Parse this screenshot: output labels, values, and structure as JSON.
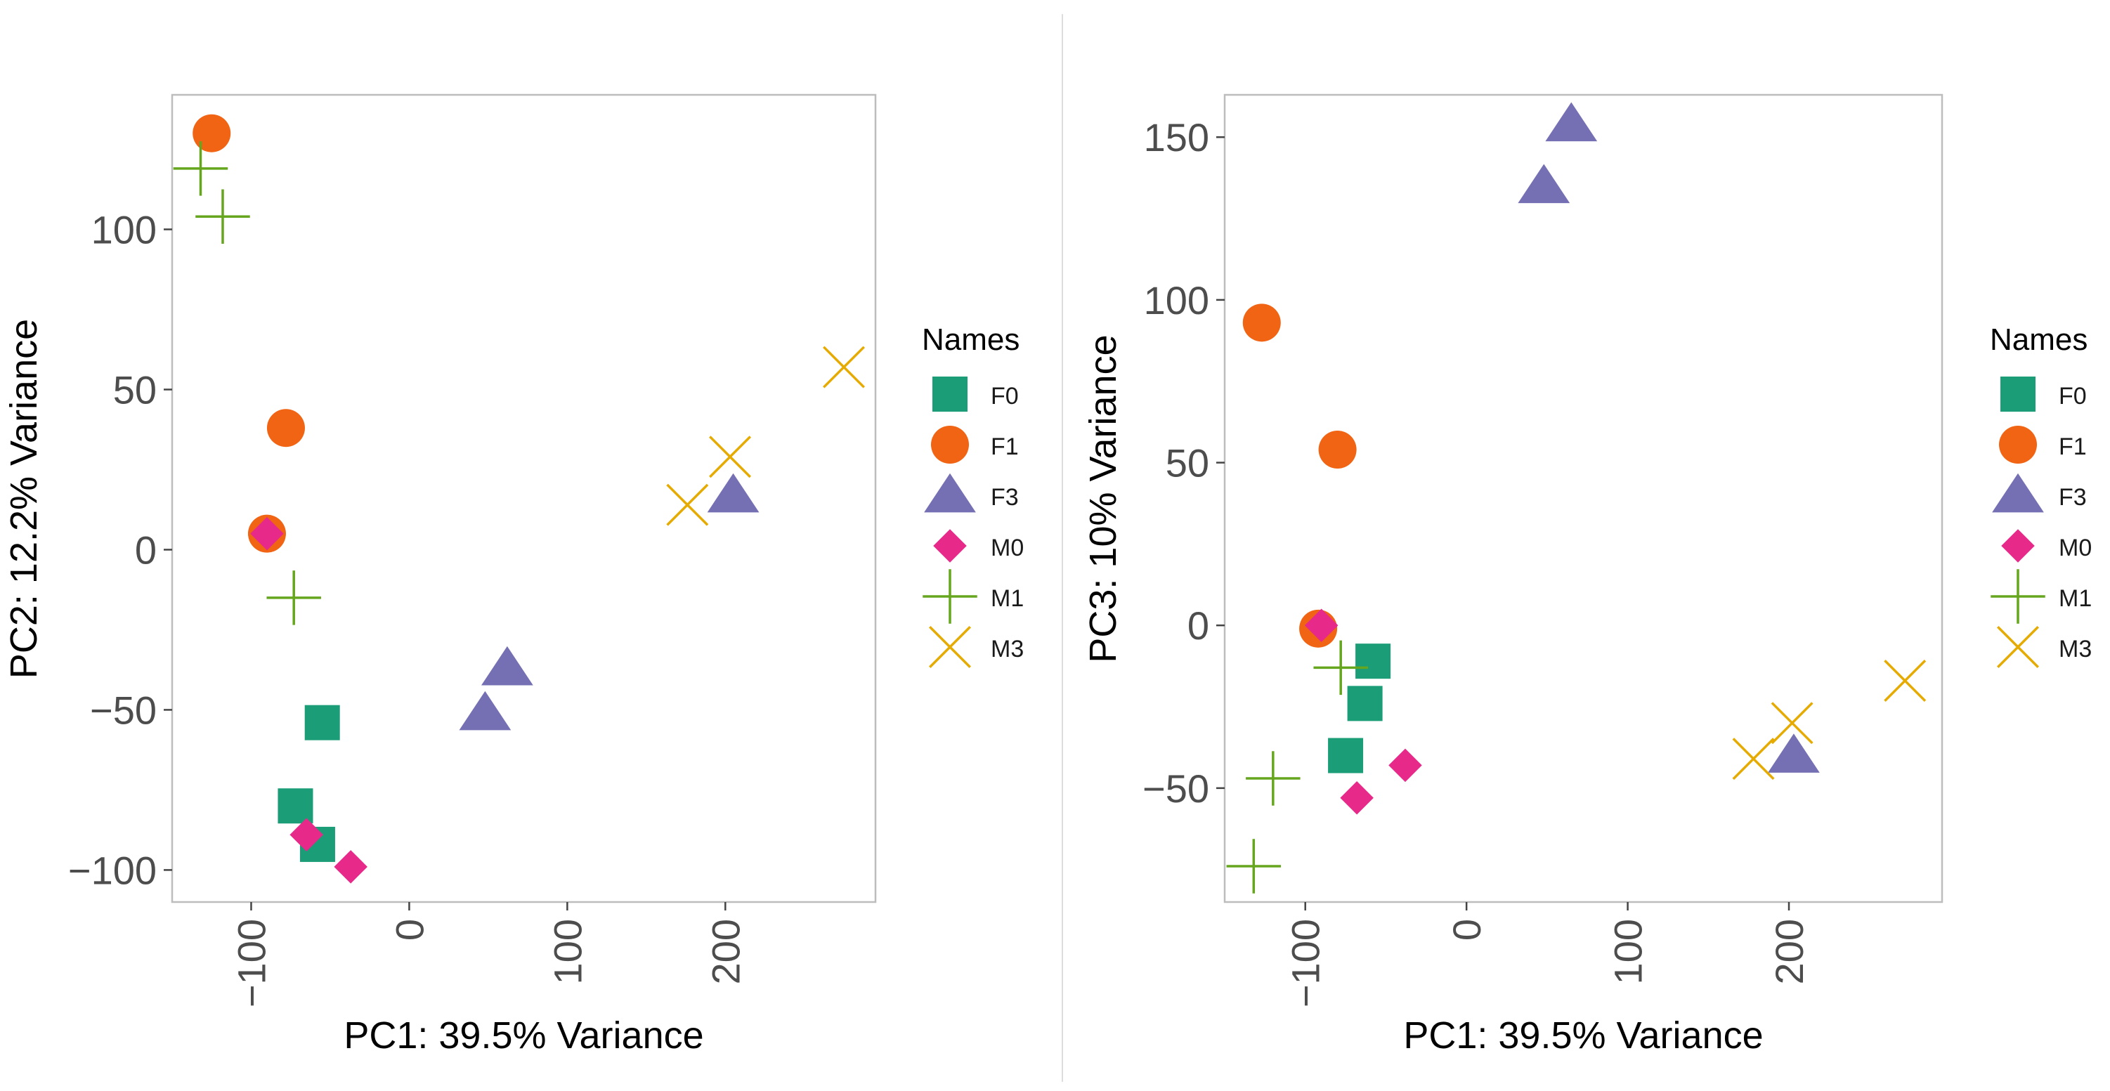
{
  "chart_data": [
    {
      "type": "scatter",
      "title": "",
      "xlabel": "PC1: 39.5% Variance",
      "ylabel": "PC2: 12.2% Variance",
      "xlim": [
        -150,
        295
      ],
      "ylim": [
        -110,
        142
      ],
      "xticks": [
        -100,
        0,
        100,
        200
      ],
      "xtick_labels": [
        "−100",
        "0",
        "100",
        "200"
      ],
      "yticks": [
        -100,
        -50,
        0,
        50,
        100
      ],
      "ytick_labels": [
        "−100",
        "−50",
        "0",
        "50",
        "100"
      ],
      "grid": false,
      "legend": "right",
      "legend_title": "Names",
      "series": [
        {
          "name": "F0",
          "color": "#1b9e77",
          "shape": "square",
          "points": [
            [
              -55,
              -54
            ],
            [
              -72,
              -80
            ],
            [
              -58,
              -92
            ]
          ]
        },
        {
          "name": "F1",
          "color": "#f06414",
          "shape": "circle",
          "points": [
            [
              -125,
              130
            ],
            [
              -78,
              38
            ],
            [
              -90,
              5
            ]
          ]
        },
        {
          "name": "F3",
          "color": "#7570b3",
          "shape": "triangle",
          "points": [
            [
              205,
              17
            ],
            [
              62,
              -37
            ],
            [
              48,
              -51
            ]
          ]
        },
        {
          "name": "M0",
          "color": "#e7298a",
          "shape": "diamond",
          "points": [
            [
              -90,
              5
            ],
            [
              -65,
              -89
            ],
            [
              -37,
              -99
            ]
          ]
        },
        {
          "name": "M1",
          "color": "#66a61e",
          "shape": "plus",
          "points": [
            [
              -132,
              119
            ],
            [
              -118,
              104
            ],
            [
              -73,
              -15
            ]
          ]
        },
        {
          "name": "M3",
          "color": "#e6ab02",
          "shape": "cross",
          "points": [
            [
              275,
              57
            ],
            [
              203,
              29
            ],
            [
              176,
              14
            ]
          ]
        }
      ]
    },
    {
      "type": "scatter",
      "title": "",
      "xlabel": "PC1: 39.5% Variance",
      "ylabel": "PC3: 10% Variance",
      "xlim": [
        -150,
        295
      ],
      "ylim": [
        -85,
        163
      ],
      "xticks": [
        -100,
        0,
        100,
        200
      ],
      "xtick_labels": [
        "−100",
        "0",
        "100",
        "200"
      ],
      "yticks": [
        -50,
        0,
        50,
        100,
        150
      ],
      "ytick_labels": [
        "−50",
        "0",
        "50",
        "100",
        "150"
      ],
      "grid": false,
      "legend": "right",
      "legend_title": "Names",
      "series": [
        {
          "name": "F0",
          "color": "#1b9e77",
          "shape": "square",
          "points": [
            [
              -58,
              -11
            ],
            [
              -63,
              -24
            ],
            [
              -75,
              -40
            ]
          ]
        },
        {
          "name": "F1",
          "color": "#f06414",
          "shape": "circle",
          "points": [
            [
              -127,
              93
            ],
            [
              -80,
              54
            ],
            [
              -92,
              -1
            ]
          ]
        },
        {
          "name": "F3",
          "color": "#7570b3",
          "shape": "triangle",
          "points": [
            [
              65,
              154
            ],
            [
              48,
              135
            ],
            [
              203,
              -40
            ]
          ]
        },
        {
          "name": "M0",
          "color": "#e7298a",
          "shape": "diamond",
          "points": [
            [
              -90,
              0
            ],
            [
              -68,
              -53
            ],
            [
              -38,
              -43
            ]
          ]
        },
        {
          "name": "M1",
          "color": "#66a61e",
          "shape": "plus",
          "points": [
            [
              -78,
              -13
            ],
            [
              -120,
              -47
            ],
            [
              -132,
              -74
            ]
          ]
        },
        {
          "name": "M3",
          "color": "#e6ab02",
          "shape": "cross",
          "points": [
            [
              272,
              -17
            ],
            [
              202,
              -30
            ],
            [
              178,
              -41
            ]
          ]
        }
      ]
    }
  ]
}
